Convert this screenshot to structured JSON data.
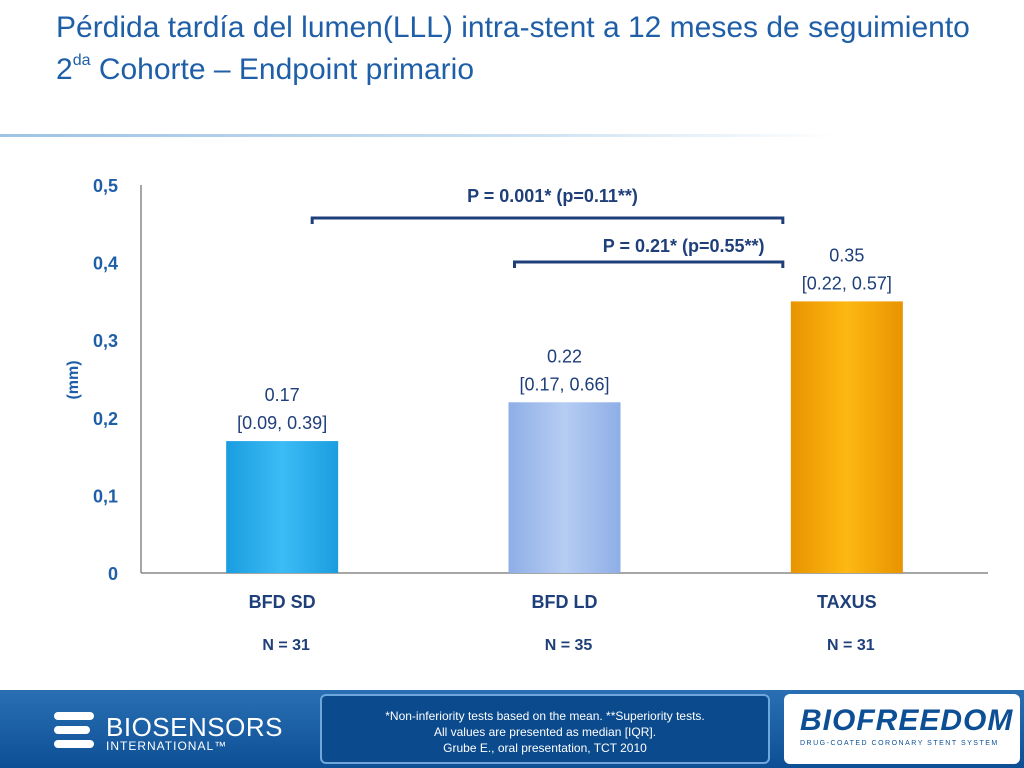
{
  "header": {
    "title": "Pérdida tardía del lumen(LLL) intra-stent  a 12 meses de seguimiento",
    "subtitle_pre": "2",
    "subtitle_sup": "da",
    "subtitle_post": " Cohorte – Endpoint primario"
  },
  "chart_data": {
    "type": "bar",
    "ylabel": "(mm)",
    "ylim": [
      0,
      0.5
    ],
    "yticks": [
      "0",
      "0,1",
      "0,2",
      "0,3",
      "0,4",
      "0,5"
    ],
    "ytick_values": [
      0,
      0.1,
      0.2,
      0.3,
      0.4,
      0.5
    ],
    "grid": false,
    "categories": [
      "BFD SD",
      "BFD LD",
      "TAXUS"
    ],
    "values": [
      0.17,
      0.22,
      0.35
    ],
    "value_labels": [
      "0.17",
      "0.22",
      "0.35"
    ],
    "iqr_labels": [
      "[0.09, 0.39]",
      "[0.17, 0.66]",
      "[0.22, 0.57]"
    ],
    "n_labels": [
      "N = 31",
      "N = 35",
      "N  = 31"
    ],
    "colors": [
      "#2fb2ef",
      "#a8c1ee",
      "#f5a800"
    ],
    "comparisons": [
      {
        "from": 0,
        "to": 2,
        "label": "P = 0.001* (p=0.11**)"
      },
      {
        "from": 1,
        "to": 2,
        "label": "P = 0.21* (p=0.55**)"
      }
    ]
  },
  "footer": {
    "notes": [
      "*Non-inferiority tests based on the mean. **Superiority tests.",
      "All values are presented as median [IQR].",
      "Grube E., oral presentation, TCT 2010"
    ],
    "left_logo_name": "BIOSENSORS",
    "left_logo_sub": "INTERNATIONAL™",
    "right_logo_name": "BIOFREEDOM",
    "right_logo_tag": "DRUG-COATED CORONARY STENT SYSTEM"
  },
  "colors": {
    "title": "#1f5fa8",
    "footer_bg": "#0d4f95"
  }
}
